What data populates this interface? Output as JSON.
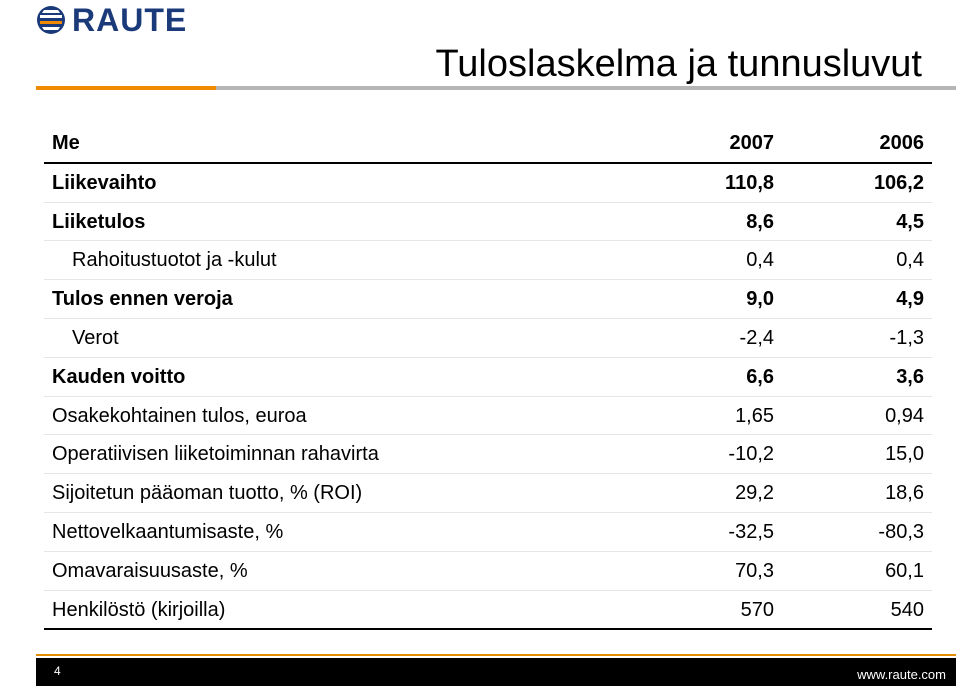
{
  "header": {
    "logo_text": "RAUTE",
    "title": "Tuloslaskelma ja tunnusluvut",
    "accent_color": "#f08a00",
    "brand_color": "#1b3a7a"
  },
  "table": {
    "columns": {
      "label": "Me",
      "y1": "2007",
      "y2": "2006"
    },
    "rows": [
      {
        "label": "Liikevaihto",
        "y1": "110,8",
        "y2": "106,2",
        "bold": true,
        "indent": false
      },
      {
        "label": "Liiketulos",
        "y1": "8,6",
        "y2": "4,5",
        "bold": true,
        "indent": false
      },
      {
        "label": "Rahoitustuotot ja -kulut",
        "y1": "0,4",
        "y2": "0,4",
        "bold": false,
        "indent": true
      },
      {
        "label": "Tulos ennen veroja",
        "y1": "9,0",
        "y2": "4,9",
        "bold": true,
        "indent": false
      },
      {
        "label": "Verot",
        "y1": "-2,4",
        "y2": "-1,3",
        "bold": false,
        "indent": true
      },
      {
        "label": "Kauden voitto",
        "y1": "6,6",
        "y2": "3,6",
        "bold": true,
        "indent": false
      },
      {
        "label": "Osakekohtainen tulos, euroa",
        "y1": "1,65",
        "y2": "0,94",
        "bold": false,
        "indent": false
      },
      {
        "label": "Operatiivisen liiketoiminnan rahavirta",
        "y1": "-10,2",
        "y2": "15,0",
        "bold": false,
        "indent": false
      },
      {
        "label": "Sijoitetun pääoman tuotto, % (ROI)",
        "y1": "29,2",
        "y2": "18,6",
        "bold": false,
        "indent": false
      },
      {
        "label": "Nettovelkaantumisaste, %",
        "y1": "-32,5",
        "y2": "-80,3",
        "bold": false,
        "indent": false
      },
      {
        "label": "Omavaraisuusaste, %",
        "y1": "70,3",
        "y2": "60,1",
        "bold": false,
        "indent": false
      },
      {
        "label": "Henkilöstö (kirjoilla)",
        "y1": "570",
        "y2": "540",
        "bold": false,
        "indent": false
      }
    ]
  },
  "footer": {
    "page_number": "4",
    "url": "www.raute.com"
  }
}
